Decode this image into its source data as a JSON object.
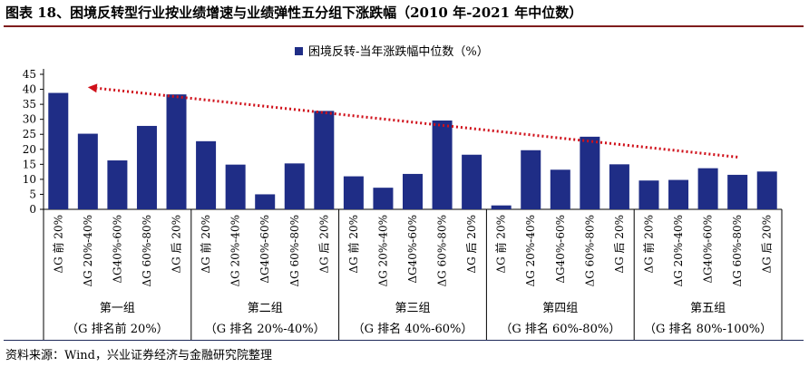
{
  "title": "图表 18、困境反转型行业按业绩增速与业绩弹性五分组下涨跌幅（2010 年-2021 年中位数）",
  "source": "资料来源：Wind，兴业证券经济与金融研究院整理",
  "colors": {
    "bar": "#1f2d86",
    "trend": "#d0101a",
    "axis": "#000000",
    "title_rule": "#7f1d1d"
  },
  "chart_data": {
    "type": "bar",
    "legend": "困境反转-当年涨跌幅中位数（%）",
    "legend_position": "top-right",
    "grid": false,
    "ylim": [
      0,
      45
    ],
    "yticks": [
      0,
      5,
      10,
      15,
      20,
      25,
      30,
      35,
      40,
      45
    ],
    "categories": [
      "ΔG 前 20%",
      "ΔG 20%-40%",
      "ΔG40%-60%",
      "ΔG 60%-80%",
      "ΔG 后 20%",
      "ΔG 前 20%",
      "ΔG 20%-40%",
      "ΔG40%-60%",
      "ΔG 60%-80%",
      "ΔG 后 20%",
      "ΔG 前 20%",
      "ΔG 20%-40%",
      "ΔG40%-60%",
      "ΔG 60%-80%",
      "ΔG 后 20%",
      "ΔG 前 20%",
      "ΔG 20%-40%",
      "ΔG40%-60%",
      "ΔG 60%-80%",
      "ΔG 后 20%",
      "ΔG 前 20%",
      "ΔG 20%-40%",
      "ΔG40%-60%",
      "ΔG 60%-80%",
      "ΔG 后 20%"
    ],
    "values": [
      38.8,
      25.2,
      16.3,
      27.8,
      38.3,
      22.7,
      14.9,
      5.0,
      15.3,
      32.8,
      11.0,
      7.2,
      11.8,
      29.6,
      18.2,
      1.3,
      19.7,
      13.2,
      24.2,
      15.0,
      9.6,
      9.8,
      13.7,
      11.5,
      12.6
    ],
    "groups": [
      {
        "name": "第一组",
        "sub": "（G 排名前 20%）"
      },
      {
        "name": "第二组",
        "sub": "（G 排名 20%-40%）"
      },
      {
        "name": "第三组",
        "sub": "（G 排名 40%-60%）"
      },
      {
        "name": "第四组",
        "sub": "（G 排名 60%-80%）"
      },
      {
        "name": "第五组",
        "sub": "（G 排名 80%-100%）"
      }
    ],
    "trend_line": {
      "from": {
        "bar_index": 1,
        "y": 40.7
      },
      "to": {
        "bar_index": 23,
        "y": 17.4
      }
    }
  }
}
